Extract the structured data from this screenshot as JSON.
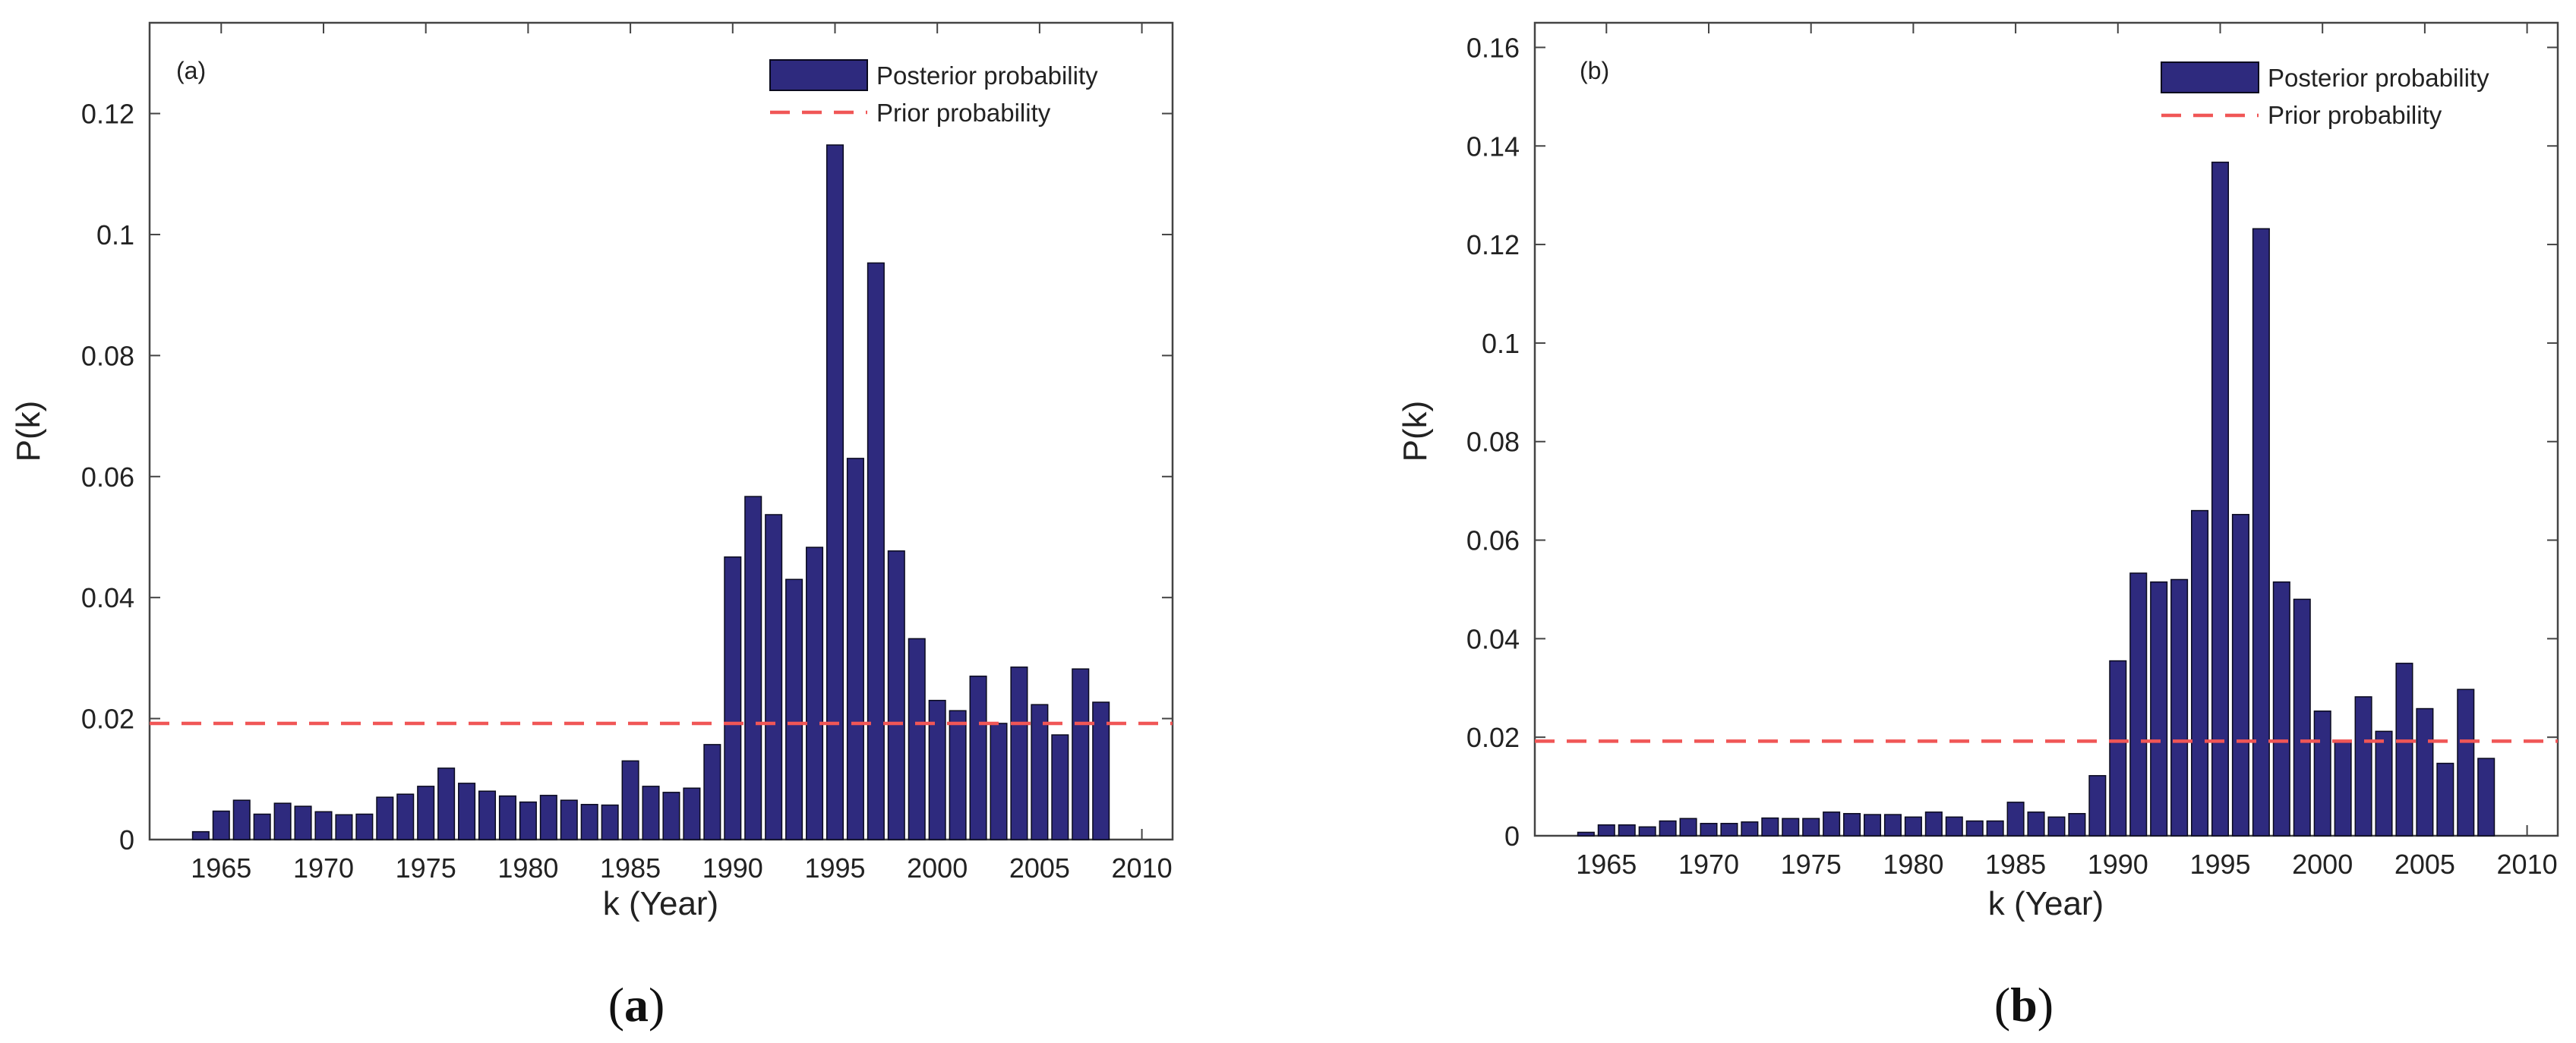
{
  "chart_data": [
    {
      "id": "a",
      "type": "bar",
      "panel_label": "(a)",
      "caption_letter": "a",
      "xlabel": "k (Year)",
      "ylabel": "P(k)",
      "xlim": [
        1961.5,
        2011.5
      ],
      "ylim": [
        0,
        0.135
      ],
      "yticks": [
        0,
        0.02,
        0.04,
        0.06,
        0.08,
        0.1,
        0.12
      ],
      "ytick_labels": [
        "0",
        "0.02",
        "0.04",
        "0.06",
        "0.08",
        "0.1",
        "0.12"
      ],
      "xticks": [
        1965,
        1970,
        1975,
        1980,
        1985,
        1990,
        1995,
        2000,
        2005,
        2010
      ],
      "xtick_labels": [
        "1965",
        "1970",
        "1975",
        "1980",
        "1985",
        "1990",
        "1995",
        "2000",
        "2005",
        "2010"
      ],
      "legend": {
        "posterior": "Posterior probability",
        "prior": "Prior probability",
        "position": "top-right"
      },
      "prior_value": 0.0192,
      "years": [
        1964,
        1965,
        1966,
        1967,
        1968,
        1969,
        1970,
        1971,
        1972,
        1973,
        1974,
        1975,
        1976,
        1977,
        1978,
        1979,
        1980,
        1981,
        1982,
        1983,
        1984,
        1985,
        1986,
        1987,
        1988,
        1989,
        1990,
        1991,
        1992,
        1993,
        1994,
        1995,
        1996,
        1997,
        1998,
        1999,
        2000,
        2001,
        2002,
        2003,
        2004,
        2005,
        2006,
        2007,
        2008
      ],
      "values": [
        0.0013,
        0.0047,
        0.0065,
        0.0042,
        0.006,
        0.0055,
        0.0046,
        0.0041,
        0.0042,
        0.007,
        0.0075,
        0.0088,
        0.0118,
        0.0093,
        0.008,
        0.0072,
        0.0062,
        0.0073,
        0.0065,
        0.0058,
        0.0057,
        0.013,
        0.0088,
        0.0078,
        0.0085,
        0.0157,
        0.0467,
        0.0567,
        0.0537,
        0.043,
        0.0483,
        0.1148,
        0.063,
        0.0953,
        0.0477,
        0.0332,
        0.023,
        0.0213,
        0.027,
        0.0192,
        0.0285,
        0.0223,
        0.0173,
        0.0282,
        0.0227
      ]
    },
    {
      "id": "b",
      "type": "bar",
      "panel_label": "(b)",
      "caption_letter": "b",
      "xlabel": "k (Year)",
      "ylabel": "P(k)",
      "xlim": [
        1961.5,
        2011.5
      ],
      "ylim": [
        0,
        0.165
      ],
      "yticks": [
        0,
        0.02,
        0.04,
        0.06,
        0.08,
        0.1,
        0.12,
        0.14,
        0.16
      ],
      "ytick_labels": [
        "0",
        "0.02",
        "0.04",
        "0.06",
        "0.08",
        "0.1",
        "0.12",
        "0.14",
        "0.16"
      ],
      "xticks": [
        1965,
        1970,
        1975,
        1980,
        1985,
        1990,
        1995,
        2000,
        2005,
        2010
      ],
      "xtick_labels": [
        "1965",
        "1970",
        "1975",
        "1980",
        "1985",
        "1990",
        "1995",
        "2000",
        "2005",
        "2010"
      ],
      "legend": {
        "posterior": "Posterior probability",
        "prior": "Prior probability",
        "position": "top-right"
      },
      "prior_value": 0.0192,
      "years": [
        1964,
        1965,
        1966,
        1967,
        1968,
        1969,
        1970,
        1971,
        1972,
        1973,
        1974,
        1975,
        1976,
        1977,
        1978,
        1979,
        1980,
        1981,
        1982,
        1983,
        1984,
        1985,
        1986,
        1987,
        1988,
        1989,
        1990,
        1991,
        1992,
        1993,
        1994,
        1995,
        1996,
        1997,
        1998,
        1999,
        2000,
        2001,
        2002,
        2003,
        2004,
        2005,
        2006,
        2007,
        2008
      ],
      "values": [
        0.0007,
        0.0022,
        0.0022,
        0.0018,
        0.003,
        0.0035,
        0.0025,
        0.0025,
        0.0028,
        0.0036,
        0.0035,
        0.0035,
        0.0048,
        0.0045,
        0.0043,
        0.0043,
        0.0038,
        0.0048,
        0.0038,
        0.003,
        0.003,
        0.0068,
        0.0048,
        0.0038,
        0.0045,
        0.0122,
        0.0355,
        0.0533,
        0.0515,
        0.052,
        0.066,
        0.1367,
        0.0652,
        0.1232,
        0.0515,
        0.048,
        0.0253,
        0.019,
        0.0282,
        0.0212,
        0.035,
        0.0258,
        0.0147,
        0.0297,
        0.0157
      ]
    }
  ],
  "colors": {
    "bar_fill": "#2e2a7e",
    "bar_stroke": "#0a0a1e",
    "prior_line": "#f05656",
    "axis": "#444444"
  }
}
